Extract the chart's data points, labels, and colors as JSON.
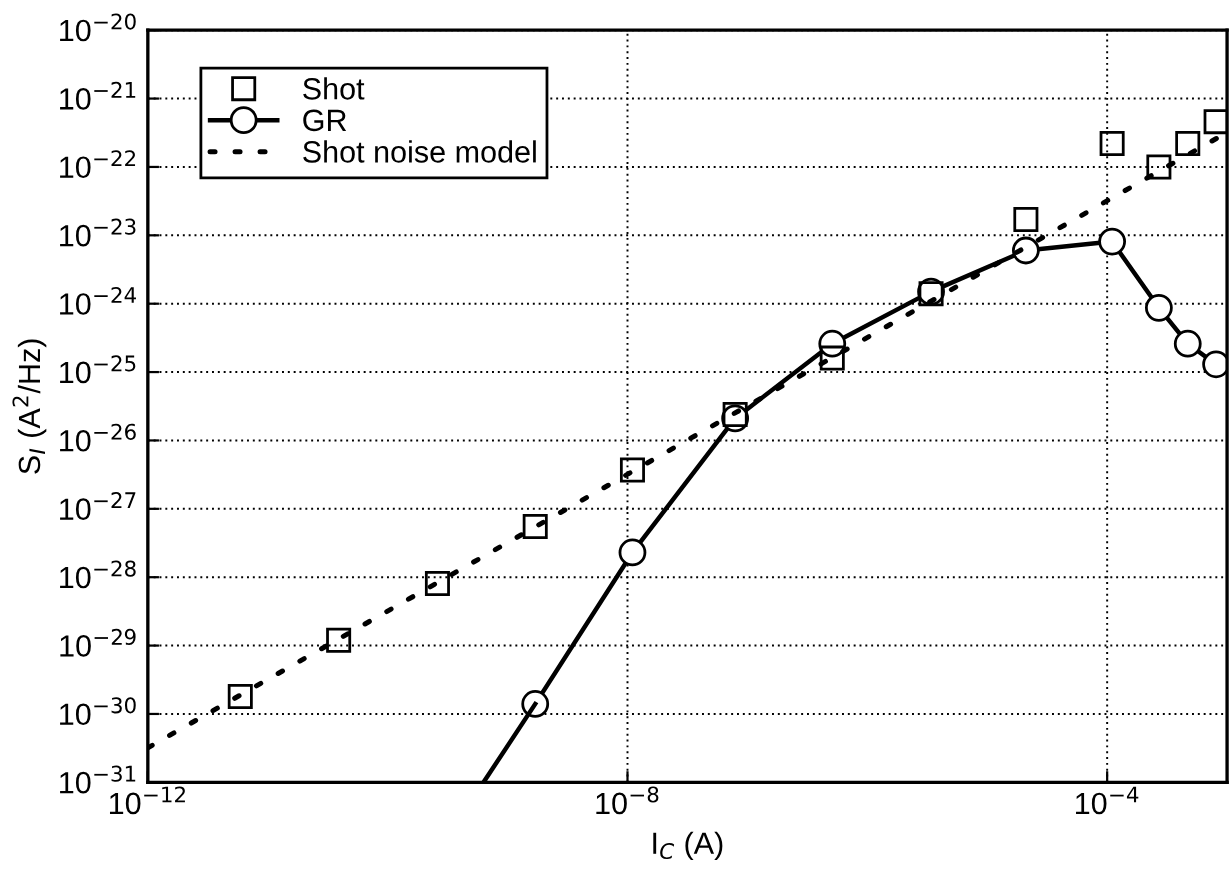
{
  "chart_data": {
    "type": "line",
    "xlabel": "I$_{C}$ (A)",
    "ylabel": "S$_{I}$ (A$^{2}$/Hz)",
    "log": "xy",
    "grid": true,
    "legend": "top left",
    "xlim": [
      1e-12,
      0.001
    ],
    "xticks": [
      {
        "value": 1e-12,
        "label": "10$^{−12}$"
      },
      {
        "value": 1e-08,
        "label": "10$^{−8}$"
      },
      {
        "value": 0.0001,
        "label": "10$^{−4}$"
      }
    ],
    "ylim": [
      1e-31,
      1e-20
    ],
    "yticks": [
      {
        "value": 1e-31,
        "label": "10$^{−31}$"
      },
      {
        "value": 1e-30,
        "label": "10$^{−30}$"
      },
      {
        "value": 1e-29,
        "label": "10$^{−29}$"
      },
      {
        "value": 1e-28,
        "label": "10$^{−28}$"
      },
      {
        "value": 1e-27,
        "label": "10$^{−27}$"
      },
      {
        "value": 1e-26,
        "label": "10$^{−26}$"
      },
      {
        "value": 1e-25,
        "label": "10$^{−25}$"
      },
      {
        "value": 1e-24,
        "label": "10$^{−24}$"
      },
      {
        "value": 1e-23,
        "label": "10$^{−23}$"
      },
      {
        "value": 1e-22,
        "label": "10$^{−22}$"
      },
      {
        "value": 1e-21,
        "label": "10$^{−21}$"
      },
      {
        "value": 1e-20,
        "label": "10$^{−20}$"
      }
    ],
    "series": [
      {
        "name": "Shot",
        "type": "scatter",
        "marker": "square",
        "color": "#000000",
        "x": [
          5.9e-12,
          3.9e-11,
          2.6e-10,
          1.7e-09,
          1.1e-08,
          7.9e-08,
          5.1e-07,
          3.4e-06,
          2.1e-05,
          0.00011,
          0.00027,
          0.00047,
          0.00081
        ],
        "values": [
          1.8e-30,
          1.2e-29,
          8.1e-29,
          5.5e-28,
          3.7e-27,
          2.4e-26,
          1.6e-25,
          1.4e-24,
          1.7e-23,
          2.2e-22,
          1e-22,
          2.2e-22,
          4.6e-22
        ]
      },
      {
        "name": "GR",
        "marker": "circle",
        "line_style": "solid",
        "color": "#000000",
        "x": [
          1.7e-09,
          1.1e-08,
          7.9e-08,
          5.1e-07,
          3.4e-06,
          2.1e-05,
          0.00011,
          0.00027,
          0.00047,
          0.00081
        ],
        "values": [
          1.4e-30,
          2.3e-28,
          2.1e-26,
          2.6e-25,
          1.5e-24,
          6e-24,
          8.1e-24,
          8.7e-25,
          2.6e-25,
          1.3e-25
        ]
      },
      {
        "marker": "none",
        "line_style": "solid",
        "color": "#000000",
        "x": [
          6.3e-10,
          1.7e-09
        ],
        "values": [
          1e-31,
          1.4e-30
        ]
      },
      {
        "name": "Shot noise model",
        "marker": "none",
        "line_style": "dotted",
        "color": "#000000",
        "x": [
          1e-12,
          0.001
        ],
        "values": [
          3.2e-31,
          3.2e-22
        ]
      }
    ]
  }
}
